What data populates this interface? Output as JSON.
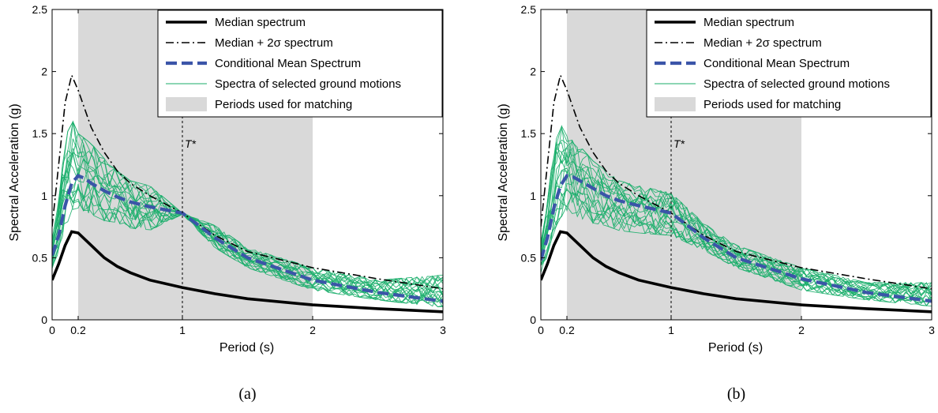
{
  "colors": {
    "median": "#000000",
    "median_plus_2sigma": "#000000",
    "cms": "#3b55a8",
    "ground_motions": "#1aae6a",
    "matching_band": "#d9d9d9"
  },
  "chart_data": [
    {
      "type": "line",
      "caption": "(a)",
      "xlabel": "Period (s)",
      "ylabel": "Spectral Acceleration (g)",
      "xlim": [
        0,
        3
      ],
      "ylim": [
        0,
        2.5
      ],
      "xticks": [
        0,
        0.2,
        1,
        2,
        3
      ],
      "xtick_labels": [
        "0",
        "0.2",
        "1",
        "2",
        "3"
      ],
      "yticks": [
        0,
        0.5,
        1,
        1.5,
        2,
        2.5
      ],
      "ytick_labels": [
        "0",
        "0.5",
        "1",
        "1.5",
        "2",
        "2.5"
      ],
      "grid": false,
      "legend_position": "top-right",
      "matching_band": {
        "x0": 0.2,
        "x1": 2.0,
        "name": "Periods used for matching"
      },
      "tstar": {
        "x": 1.0,
        "label": "T*"
      },
      "series": [
        {
          "name": "Median spectrum",
          "style": "solid-thick",
          "x": [
            0,
            0.05,
            0.1,
            0.15,
            0.2,
            0.3,
            0.4,
            0.5,
            0.6,
            0.75,
            1.0,
            1.25,
            1.5,
            2.0,
            2.5,
            3.0
          ],
          "y": [
            0.32,
            0.45,
            0.6,
            0.71,
            0.7,
            0.6,
            0.5,
            0.43,
            0.38,
            0.32,
            0.26,
            0.21,
            0.17,
            0.12,
            0.09,
            0.065
          ]
        },
        {
          "name": "Median + 2σ spectrum",
          "style": "dashdot",
          "x": [
            0,
            0.05,
            0.1,
            0.15,
            0.2,
            0.3,
            0.4,
            0.5,
            0.6,
            0.75,
            1.0,
            1.25,
            1.5,
            2.0,
            2.5,
            3.0
          ],
          "y": [
            0.75,
            1.25,
            1.75,
            1.97,
            1.85,
            1.55,
            1.35,
            1.2,
            1.1,
            1.0,
            0.86,
            0.68,
            0.55,
            0.42,
            0.33,
            0.25
          ]
        },
        {
          "name": "Conditional Mean Spectrum",
          "style": "dashed-thick",
          "x": [
            0,
            0.05,
            0.1,
            0.15,
            0.2,
            0.25,
            0.3,
            0.4,
            0.5,
            0.6,
            0.75,
            1.0,
            1.25,
            1.5,
            2.0,
            2.5,
            3.0
          ],
          "y": [
            0.52,
            0.68,
            0.92,
            1.1,
            1.16,
            1.14,
            1.1,
            1.04,
            0.99,
            0.95,
            0.91,
            0.86,
            0.66,
            0.5,
            0.32,
            0.22,
            0.15
          ]
        },
        {
          "name": "Spectra of selected ground motions",
          "style": "thin-bundle",
          "x": [
            0,
            0.05,
            0.1,
            0.15,
            0.2,
            0.3,
            0.4,
            0.5,
            0.6,
            0.75,
            1.0,
            1.25,
            1.5,
            2.0,
            2.5,
            3.0
          ],
          "y_min": [
            0.4,
            0.55,
            0.75,
            0.85,
            0.9,
            0.85,
            0.8,
            0.78,
            0.74,
            0.72,
            0.85,
            0.58,
            0.42,
            0.24,
            0.16,
            0.1
          ],
          "y_max": [
            0.65,
            0.95,
            1.45,
            1.62,
            1.5,
            1.42,
            1.3,
            1.2,
            1.12,
            1.08,
            0.86,
            0.76,
            0.58,
            0.42,
            0.32,
            0.36
          ]
        }
      ]
    },
    {
      "type": "line",
      "caption": "(b)",
      "xlabel": "Period (s)",
      "ylabel": "Spectral Acceleration (g)",
      "xlim": [
        0,
        3
      ],
      "ylim": [
        0,
        2.5
      ],
      "xticks": [
        0,
        0.2,
        1,
        2,
        3
      ],
      "xtick_labels": [
        "0",
        "0.2",
        "1",
        "2",
        "3"
      ],
      "yticks": [
        0,
        0.5,
        1,
        1.5,
        2,
        2.5
      ],
      "ytick_labels": [
        "0",
        "0.5",
        "1",
        "1.5",
        "2",
        "2.5"
      ],
      "grid": false,
      "legend_position": "top-right",
      "matching_band": {
        "x0": 0.2,
        "x1": 2.0,
        "name": "Periods used for matching"
      },
      "tstar": {
        "x": 1.0,
        "label": "T*"
      },
      "series": [
        {
          "name": "Median spectrum",
          "style": "solid-thick",
          "x": [
            0,
            0.05,
            0.1,
            0.15,
            0.2,
            0.3,
            0.4,
            0.5,
            0.6,
            0.75,
            1.0,
            1.25,
            1.5,
            2.0,
            2.5,
            3.0
          ],
          "y": [
            0.32,
            0.45,
            0.6,
            0.71,
            0.7,
            0.6,
            0.5,
            0.43,
            0.38,
            0.32,
            0.26,
            0.21,
            0.17,
            0.12,
            0.09,
            0.065
          ]
        },
        {
          "name": "Median + 2σ spectrum",
          "style": "dashdot",
          "x": [
            0,
            0.05,
            0.1,
            0.15,
            0.2,
            0.3,
            0.4,
            0.5,
            0.6,
            0.75,
            1.0,
            1.25,
            1.5,
            2.0,
            2.5,
            3.0
          ],
          "y": [
            0.75,
            1.25,
            1.75,
            1.97,
            1.85,
            1.55,
            1.35,
            1.2,
            1.1,
            1.0,
            0.86,
            0.68,
            0.55,
            0.42,
            0.33,
            0.25
          ]
        },
        {
          "name": "Conditional Mean Spectrum",
          "style": "dashed-thick",
          "x": [
            0,
            0.05,
            0.1,
            0.15,
            0.2,
            0.25,
            0.3,
            0.4,
            0.5,
            0.6,
            0.75,
            1.0,
            1.25,
            1.5,
            2.0,
            2.5,
            3.0
          ],
          "y": [
            0.48,
            0.66,
            0.9,
            1.08,
            1.16,
            1.15,
            1.12,
            1.06,
            1.0,
            0.96,
            0.92,
            0.86,
            0.66,
            0.5,
            0.33,
            0.22,
            0.15
          ]
        },
        {
          "name": "Spectra of selected ground motions",
          "style": "thin-bundle",
          "x": [
            0,
            0.05,
            0.1,
            0.15,
            0.2,
            0.3,
            0.4,
            0.5,
            0.6,
            0.75,
            1.0,
            1.25,
            1.5,
            2.0,
            2.5,
            3.0
          ],
          "y_min": [
            0.38,
            0.52,
            0.72,
            0.82,
            0.88,
            0.82,
            0.78,
            0.76,
            0.72,
            0.7,
            0.68,
            0.56,
            0.42,
            0.24,
            0.16,
            0.11
          ],
          "y_max": [
            0.62,
            0.92,
            1.4,
            1.58,
            1.48,
            1.4,
            1.28,
            1.2,
            1.12,
            1.08,
            1.02,
            0.78,
            0.6,
            0.42,
            0.3,
            0.3
          ]
        }
      ]
    }
  ]
}
